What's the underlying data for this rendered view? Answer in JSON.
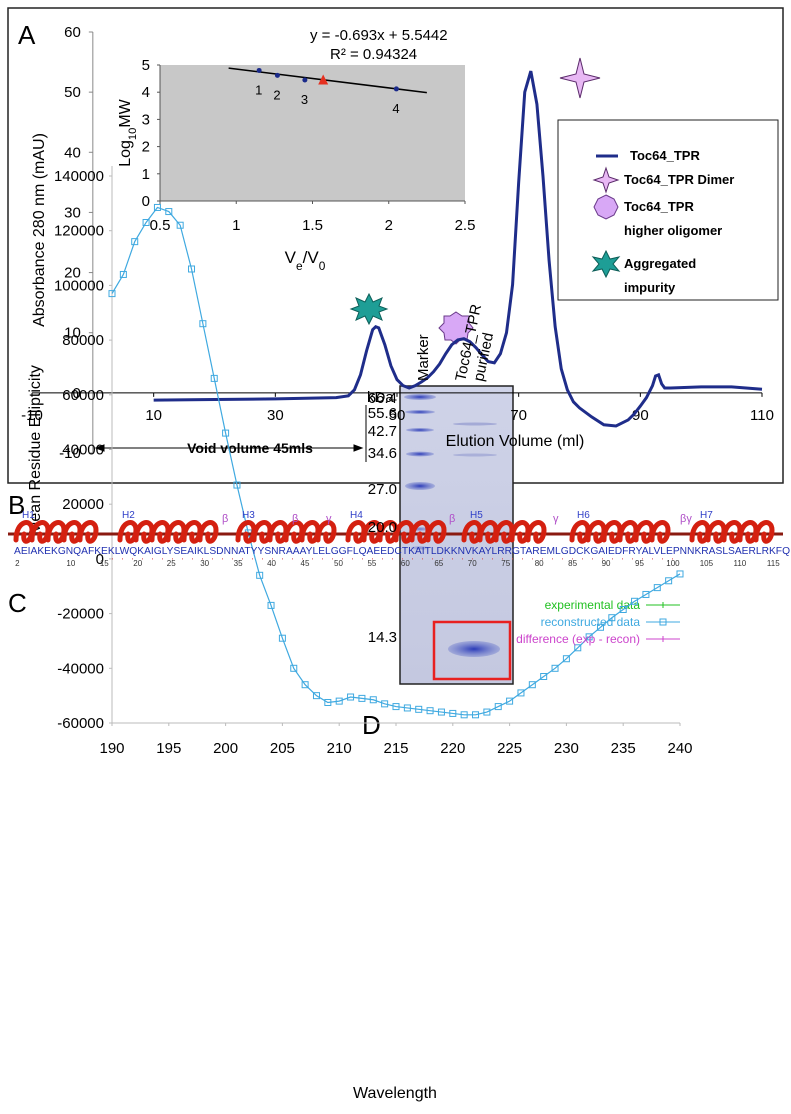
{
  "panel_labels": [
    "A",
    "B",
    "C",
    "D"
  ],
  "chart_data": [
    {
      "type": "line",
      "ylabel": "Absorbance 280 nm (mAU)",
      "xlabel": "Elution Volume (ml)",
      "annotation": "Void volume 45mls",
      "xlim": [
        -10,
        110
      ],
      "ylim": [
        -10,
        60
      ],
      "xticks": [
        -10,
        10,
        30,
        50,
        70,
        90,
        110
      ],
      "yticks": [
        -10,
        0,
        10,
        20,
        30,
        40,
        50,
        60
      ],
      "series": [
        {
          "name": "Toc64_TPR",
          "color": "#1f2d8a",
          "x": [
            10,
            20,
            30,
            40,
            42,
            43,
            44,
            45,
            46,
            46.5,
            47,
            48,
            49,
            50,
            51,
            52,
            53,
            54,
            55,
            56,
            57,
            58,
            59,
            60,
            61,
            62,
            63,
            64,
            65,
            66,
            67,
            68,
            69,
            70,
            71,
            72,
            73,
            74,
            75,
            76,
            77,
            78,
            79,
            80,
            82,
            84,
            86,
            88,
            89,
            90,
            91,
            92,
            92.5,
            93,
            93.5,
            94,
            95,
            100,
            105,
            110
          ],
          "values": [
            -1.2,
            -1.1,
            -1.0,
            -0.8,
            -0.5,
            0.5,
            3,
            7,
            10.5,
            11,
            10.8,
            8,
            4.5,
            2.2,
            1.2,
            0.8,
            1.2,
            1.8,
            2.5,
            3.5,
            4.8,
            6.5,
            8,
            8.8,
            9,
            8.5,
            7.5,
            6.3,
            5.2,
            5,
            6.5,
            10,
            18,
            35,
            50,
            53.5,
            48,
            36,
            22,
            11,
            4,
            0.5,
            -1.5,
            -2.5,
            -4,
            -5.3,
            -5.5,
            -4.5,
            -3.5,
            -2.2,
            -0.8,
            1.2,
            2.8,
            3,
            1.5,
            0.8,
            0.8,
            1,
            1,
            0.6
          ]
        }
      ],
      "legend": "right",
      "legend_markers": [
        {
          "name": [
            "Toc64_TPR Dimer"
          ],
          "color": "#e8b8f4"
        },
        {
          "name": [
            "Toc64_TPR",
            "higher oligomer"
          ],
          "color": "#d8a8f6"
        },
        {
          "name": [
            "Aggregated",
            "impurity"
          ],
          "color": "#1e9e96"
        }
      ]
    },
    {
      "type": "scatter",
      "equation": "y = -0.693x + 5.5442",
      "r_squared": "R² = 0.94324",
      "xlabel": [
        "V",
        "e",
        "/V",
        "0"
      ],
      "ylabel": [
        "Log",
        "10",
        "MW"
      ],
      "xlim": [
        0.5,
        2.5
      ],
      "ylim": [
        0,
        5
      ],
      "xticks": [
        0.5,
        1,
        1.5,
        2,
        2.5
      ],
      "yticks": [
        0,
        1,
        2,
        3,
        4,
        5
      ],
      "background": "#c8c8c8",
      "series": [
        {
          "color": "#1a2a8a",
          "marker": "dot",
          "x": [
            1.15,
            1.27,
            1.45,
            2.05
          ],
          "values": [
            4.8,
            4.62,
            4.45,
            4.12
          ],
          "point_labels": [
            "1",
            "2",
            "3",
            "4"
          ]
        },
        {
          "color": "#e53020",
          "marker": "triangle",
          "x": [
            1.57
          ],
          "values": [
            4.43
          ]
        }
      ],
      "trendline": {
        "x": [
          0.95,
          2.25
        ],
        "values": [
          4.886,
          3.985
        ]
      }
    },
    {
      "type": "line",
      "xlabel": "Wavelength",
      "ylabel": "Mean Residue Ellipticity",
      "xlim": [
        190,
        240
      ],
      "ylim": [
        -60000,
        140000
      ],
      "xticks": [
        190,
        195,
        200,
        205,
        210,
        215,
        220,
        225,
        230,
        235,
        240
      ],
      "yticks": [
        -60000,
        -40000,
        -20000,
        0,
        20000,
        40000,
        60000,
        80000,
        100000,
        120000,
        140000
      ],
      "legend": "top-right",
      "series": [
        {
          "name": "experimental data",
          "color": "#22c022",
          "x": [],
          "values": []
        },
        {
          "name": "reconstructed data",
          "color": "#3fa9e0",
          "marker": "square",
          "x": [
            190,
            191,
            192,
            193,
            194,
            195,
            196,
            197,
            198,
            199,
            200,
            201,
            202,
            203,
            204,
            205,
            206,
            207,
            208,
            209,
            210,
            211,
            212,
            213,
            214,
            215,
            216,
            217,
            218,
            219,
            220,
            221,
            222,
            223,
            224,
            225,
            226,
            227,
            228,
            229,
            230,
            231,
            232,
            233,
            234,
            235,
            236,
            237,
            238,
            239,
            240
          ],
          "values": [
            97000,
            104000,
            116000,
            123000,
            128500,
            127000,
            122000,
            106000,
            86000,
            66000,
            46000,
            27000,
            9500,
            -6000,
            -17000,
            -29000,
            -40000,
            -46000,
            -50000,
            -52500,
            -52000,
            -50500,
            -51000,
            -51500,
            -53000,
            -54000,
            -54500,
            -55000,
            -55500,
            -56000,
            -56500,
            -57000,
            -57000,
            -56000,
            -54000,
            -52000,
            -49000,
            -46000,
            -43000,
            -40000,
            -36500,
            -32500,
            -28500,
            -25000,
            -21500,
            -18500,
            -15500,
            -13000,
            -10500,
            -8000,
            -5500
          ]
        },
        {
          "name": "difference (exp - recon)",
          "color": "#cc44cc",
          "x": [],
          "values": []
        }
      ]
    }
  ],
  "sequence": {
    "helices": [
      "H1",
      "H2",
      "H3",
      "H4",
      "H5",
      "H6",
      "H7"
    ],
    "turns": [
      "β",
      "β",
      "γ",
      "β",
      "γ",
      "βγ"
    ],
    "residues": "AEIAKEKGNQAFKEKLWQKAIGLYSEAIKLSDNNATYYSNRAAAYLELGGFLQAEEDCTKAITLDKKNVKAYLRRGTAREMLGDCKGAIEDFRYALVLEPNNKRASLSAERLRKFQ",
    "numbers": [
      2,
      10,
      15,
      20,
      25,
      30,
      35,
      40,
      45,
      50,
      55,
      60,
      65,
      70,
      75,
      80,
      85,
      90,
      95,
      100,
      105,
      110,
      115
    ]
  },
  "gel": {
    "unit": "kDa",
    "lanes": [
      [
        "Marker"
      ],
      [
        "Toc64_TPR",
        "purified"
      ]
    ],
    "markers": [
      "66.4",
      "55.6",
      "42.7",
      "34.6",
      "27.0",
      "20.0",
      "14.3"
    ]
  }
}
